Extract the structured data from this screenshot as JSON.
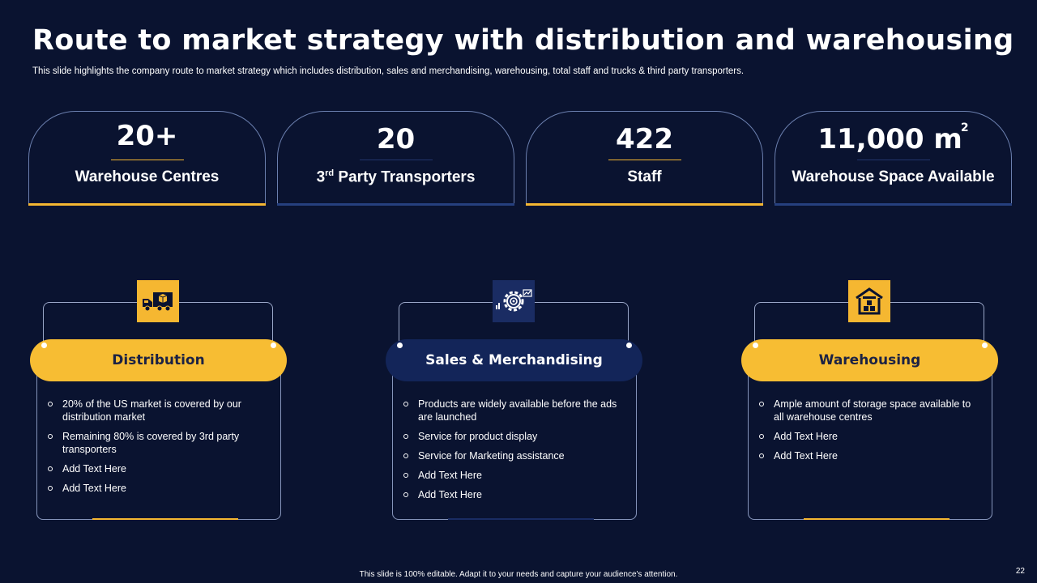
{
  "header": {
    "title": "Route to market strategy with distribution and warehousing",
    "subtitle": "This slide highlights the company route to market strategy which includes distribution, sales and merchandising, warehousing, total staff and trucks & third party transporters."
  },
  "stats": [
    {
      "value": "20+",
      "label": "Warehouse Centres"
    },
    {
      "value": "20",
      "label_sup": "rd",
      "label_pre": "3",
      "label_post": " Party Transporters"
    },
    {
      "value": "422",
      "label": "Staff"
    },
    {
      "value": "11,000 m",
      "value_sup": "2",
      "label": "Warehouse Space Available"
    }
  ],
  "columns": [
    {
      "title": "Distribution",
      "icon": "delivery-truck-icon",
      "items": [
        "20% of the US market is covered by our distribution  market",
        "Remaining 80% is covered by 3rd party transporters",
        "Add Text Here",
        "Add Text Here"
      ]
    },
    {
      "title": "Sales & Merchandising",
      "icon": "gear-chart-icon",
      "items": [
        "Products are widely available before the ads are launched",
        "Service for product display",
        "Service for Marketing assistance",
        "Add Text Here",
        "Add Text Here"
      ]
    },
    {
      "title": "Warehousing",
      "icon": "warehouse-icon",
      "items": [
        "Ample amount of storage space available to all warehouse centres",
        "Add Text Here",
        "Add Text Here"
      ]
    }
  ],
  "footer": {
    "note": "This slide is 100% editable.  Adapt it to your needs and capture your audience's attention.",
    "page_number": "22"
  },
  "colors": {
    "background": "#0a1330",
    "accent_gold": "#f5b731",
    "accent_navy": "#132559"
  }
}
